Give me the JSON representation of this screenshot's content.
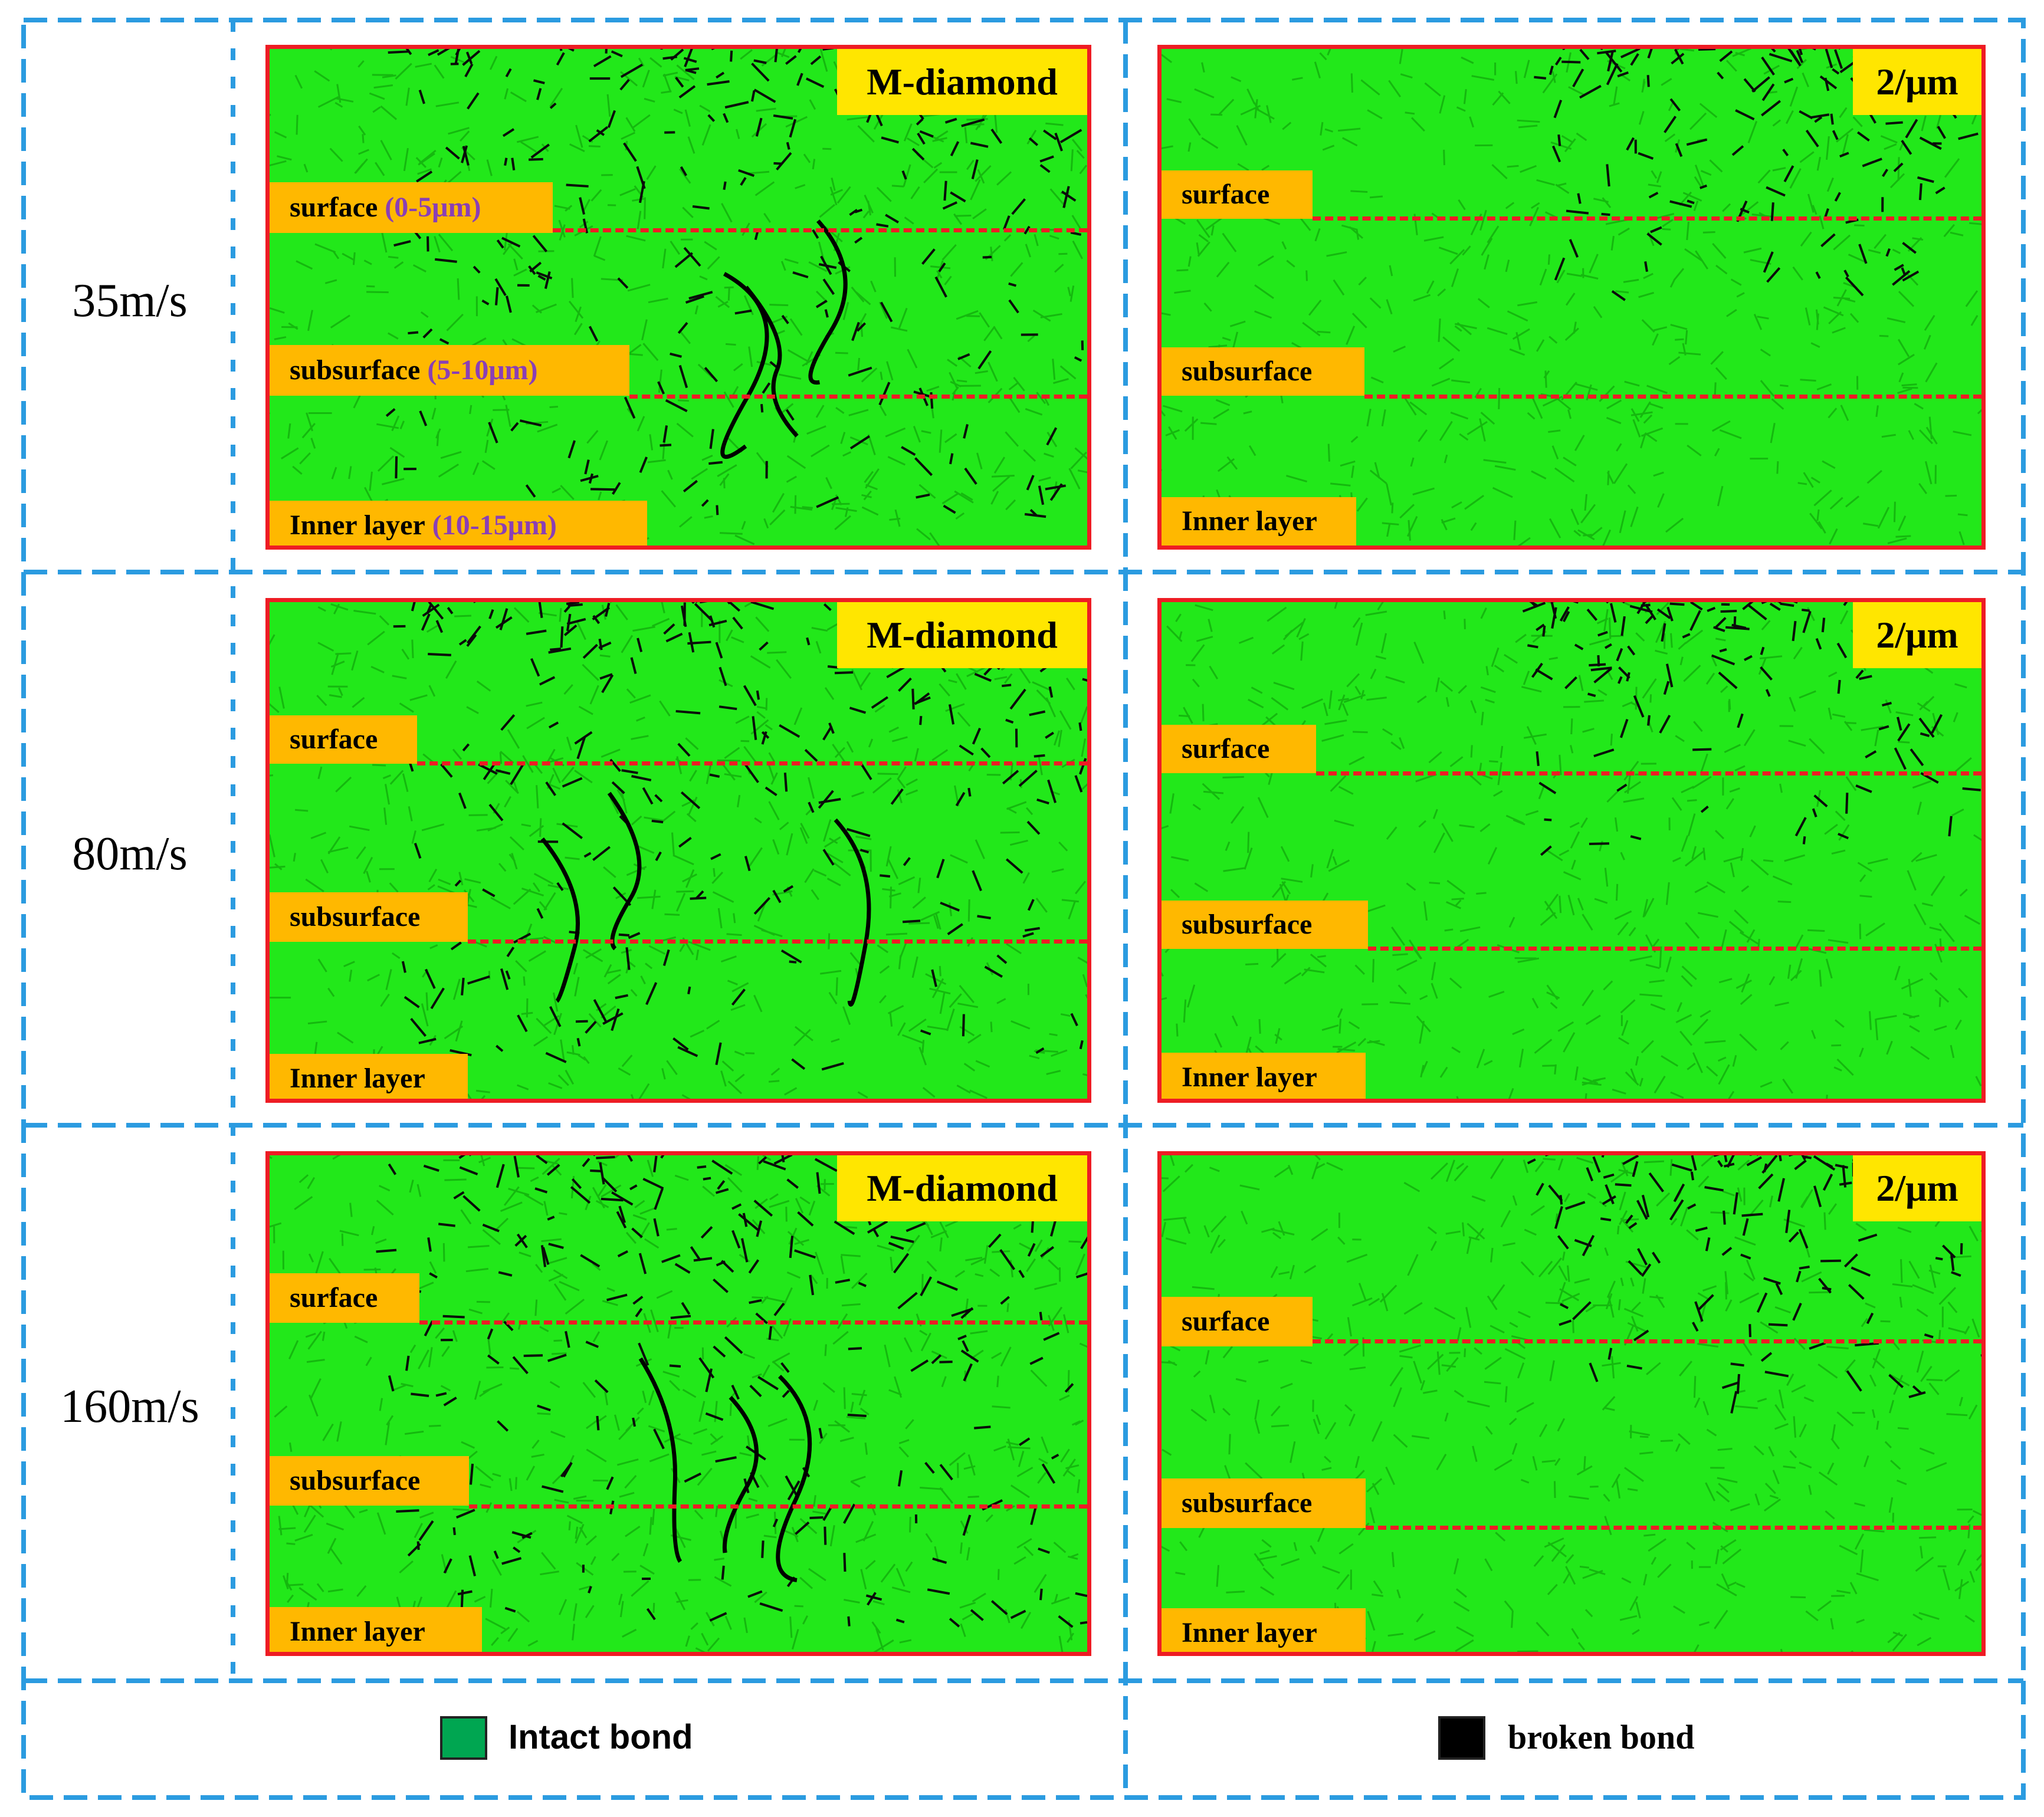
{
  "rows": [
    {
      "speed": "35m/s",
      "left": {
        "tag": "M-diamond",
        "surface": "surface",
        "surface_depth": "(0-5μm)",
        "subsurface": "subsurface",
        "subsurface_depth": "(5-10μm)",
        "inner": "Inner layer",
        "inner_depth": "(10-15μm)"
      },
      "right": {
        "tag": "2/μm",
        "surface": "surface",
        "subsurface": "subsurface",
        "inner": "Inner layer"
      }
    },
    {
      "speed": "80m/s",
      "left": {
        "tag": "M-diamond",
        "surface": "surface",
        "subsurface": "subsurface",
        "inner": "Inner layer"
      },
      "right": {
        "tag": "2/μm",
        "surface": "surface",
        "subsurface": "subsurface",
        "inner": "Inner layer"
      }
    },
    {
      "speed": "160m/s",
      "left": {
        "tag": "M-diamond",
        "surface": "surface",
        "subsurface": "subsurface",
        "inner": "Inner layer"
      },
      "right": {
        "tag": "2/μm",
        "surface": "surface",
        "subsurface": "subsurface",
        "inner": "Inner layer"
      }
    }
  ],
  "legend": {
    "intact": {
      "label": "Intact bond",
      "color": "#00a651"
    },
    "broken": {
      "label": "broken bond",
      "color": "#000000"
    }
  },
  "colors": {
    "panel_fill": "#22e81a",
    "panel_border": "#ee1c24",
    "tag_fill": "#ffe600",
    "zone_fill": "#ffb800",
    "depth_text": "#8a3fb5",
    "frame_dash": "#2b9be0"
  }
}
